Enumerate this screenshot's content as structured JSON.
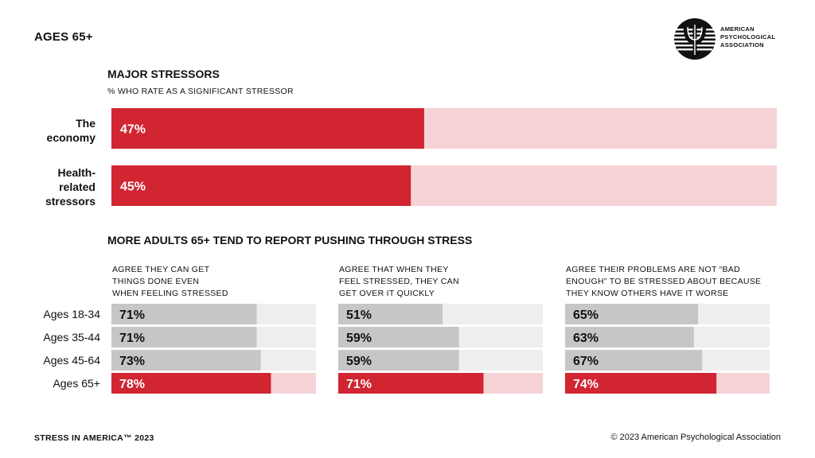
{
  "page": {
    "title": "AGES 65+",
    "footer_left": "STRESS IN AMERICA™ 2023",
    "footer_right": "© 2023 American Psychological Association"
  },
  "logo": {
    "icon": "psi-logo-icon",
    "lines": [
      "AMERICAN",
      "PSYCHOLOGICAL",
      "ASSOCIATION"
    ]
  },
  "colors": {
    "highlight": "#d12531",
    "highlight_bg": "#f5d3d6",
    "neutral": "#c6c6c8",
    "neutral_bg": "#eeeeef"
  },
  "chart_data": [
    {
      "type": "bar",
      "orientation": "horizontal",
      "title": "MAJOR STRESSORS",
      "subtitle": "% WHO RATE AS A SIGNIFICANT STRESSOR",
      "categories": [
        "The economy",
        "Health-related stressors"
      ],
      "category_lines": [
        [
          "The",
          "economy"
        ],
        [
          "Health-",
          "related",
          "stressors"
        ]
      ],
      "values": [
        47,
        45
      ],
      "value_labels": [
        "47%",
        "45%"
      ],
      "xlim": [
        0,
        100
      ]
    },
    {
      "type": "bar",
      "orientation": "horizontal",
      "title": "MORE ADULTS 65+ TEND TO REPORT PUSHING THROUGH STRESS",
      "categories": [
        "Ages 18-34",
        "Ages 35-44",
        "Ages 45-64",
        "Ages 65+"
      ],
      "highlight_category": "Ages 65+",
      "xlim": [
        0,
        100
      ],
      "panels": [
        {
          "title_lines": [
            "AGREE THEY CAN GET",
            "THINGS DONE EVEN",
            "WHEN FEELING STRESSED"
          ],
          "values": [
            71,
            71,
            73,
            78
          ],
          "value_labels": [
            "71%",
            "71%",
            "73%",
            "78%"
          ]
        },
        {
          "title_lines": [
            "AGREE THAT WHEN THEY",
            "FEEL STRESSED, THEY CAN",
            "GET OVER IT QUICKLY"
          ],
          "values": [
            51,
            59,
            59,
            71
          ],
          "value_labels": [
            "51%",
            "59%",
            "59%",
            "71%"
          ]
        },
        {
          "title_lines": [
            "AGREE THEIR PROBLEMS ARE NOT “BAD",
            "ENOUGH” TO BE STRESSED ABOUT BECAUSE",
            "THEY KNOW OTHERS HAVE IT WORSE"
          ],
          "values": [
            65,
            63,
            67,
            74
          ],
          "value_labels": [
            "65%",
            "63%",
            "67%",
            "74%"
          ]
        }
      ]
    }
  ]
}
